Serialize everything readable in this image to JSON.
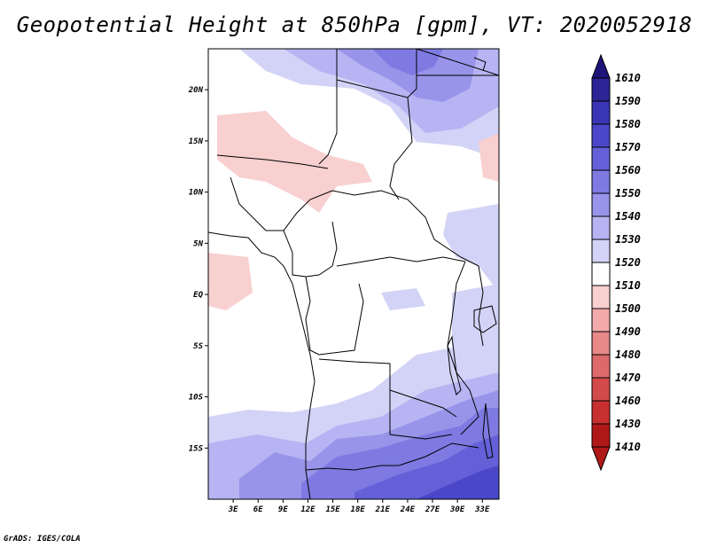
{
  "title": "Geopotential Height at 850hPa [gpm], VT: 2020052918",
  "credit": "GrADS: IGES/COLA",
  "chart_data": {
    "type": "heatmap",
    "variable": "Geopotential Height",
    "level": "850hPa",
    "units": "gpm",
    "valid_time": "2020052918",
    "lon_range": [
      0,
      35
    ],
    "lat_range": [
      -20,
      24
    ],
    "xticks": [
      "3E",
      "6E",
      "9E",
      "12E",
      "15E",
      "18E",
      "21E",
      "24E",
      "27E",
      "30E",
      "33E"
    ],
    "yticks": [
      "20N",
      "15N",
      "10N",
      "5N",
      "EQ",
      "5S",
      "10S",
      "15S"
    ],
    "colorbar": {
      "levels": [
        "1610",
        "1590",
        "1580",
        "1570",
        "1560",
        "1550",
        "1540",
        "1530",
        "1520",
        "1510",
        "1500",
        "1490",
        "1480",
        "1470",
        "1460",
        "1430",
        "1410"
      ],
      "colors": [
        "#1e1477",
        "#2b2596",
        "#3a35b4",
        "#4b47c8",
        "#6560d8",
        "#7e7ae2",
        "#9894ea",
        "#b6b4f2",
        "#d3d3f7",
        "#ffffff",
        "#f8d0d0",
        "#f2aaaa",
        "#e88888",
        "#dc6a6a",
        "#d24a4a",
        "#c83030",
        "#b01818"
      ]
    }
  }
}
